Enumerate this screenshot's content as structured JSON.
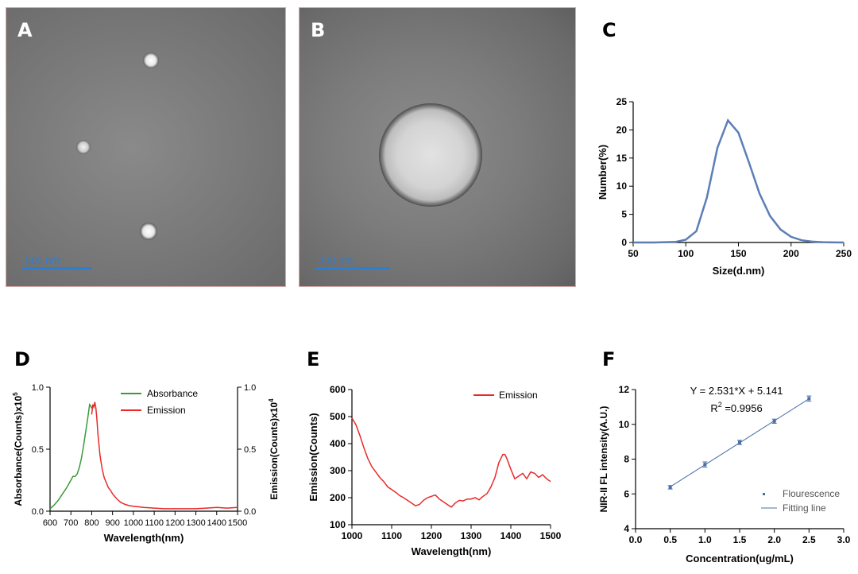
{
  "panels": {
    "A": {
      "letter": "A",
      "scale_bar": "500  nm"
    },
    "B": {
      "letter": "B",
      "scale_bar": "200  nm"
    },
    "C": {
      "letter": "C"
    },
    "D": {
      "letter": "D"
    },
    "E": {
      "letter": "E"
    },
    "F": {
      "letter": "F"
    }
  },
  "chart_data": [
    {
      "id": "C",
      "type": "line",
      "xlabel": "Size(d.nm)",
      "ylabel": "Number(%)",
      "xlim": [
        50,
        250
      ],
      "ylim": [
        0,
        25
      ],
      "xticks": [
        50,
        100,
        150,
        200,
        250
      ],
      "yticks": [
        0,
        5,
        10,
        15,
        20,
        25
      ],
      "color": "#5b7fb5",
      "series": [
        {
          "x": [
            50,
            70,
            90,
            100,
            110,
            120,
            130,
            140,
            150,
            160,
            170,
            180,
            190,
            200,
            210,
            220,
            230,
            240,
            250
          ],
          "y": [
            0,
            0,
            0.1,
            0.5,
            2,
            8,
            16.8,
            21.7,
            19.5,
            14.2,
            8.7,
            4.7,
            2.3,
            1.0,
            0.4,
            0.15,
            0.05,
            0.02,
            0
          ]
        }
      ]
    },
    {
      "id": "D",
      "type": "line",
      "xlabel": "Wavelength(nm)",
      "ylabel_left": "Absorbance(Counts)x10",
      "ylabel_left_sup": "5",
      "ylabel_right": "Emission(Counts)x10",
      "ylabel_right_sup": "4",
      "xlim": [
        600,
        1500
      ],
      "ylim": [
        0,
        1.0
      ],
      "xticks": [
        600,
        700,
        800,
        900,
        1000,
        1100,
        1200,
        1300,
        1400,
        1500
      ],
      "yticks": [
        0,
        0.5,
        1.0
      ],
      "ytick_labels": [
        "0.0",
        "0.5",
        "1.0"
      ],
      "series": [
        {
          "name": "Absorbance",
          "color": "#3a9a3a",
          "x": [
            600,
            620,
            640,
            660,
            680,
            700,
            710,
            720,
            730,
            740,
            750,
            760,
            770,
            780,
            790,
            795,
            800
          ],
          "y": [
            0.02,
            0.05,
            0.09,
            0.14,
            0.19,
            0.25,
            0.28,
            0.28,
            0.3,
            0.35,
            0.42,
            0.52,
            0.63,
            0.74,
            0.86,
            0.85,
            0.83
          ]
        },
        {
          "name": "Emission",
          "color": "#e82a2a",
          "x": [
            800,
            805,
            810,
            815,
            820,
            825,
            830,
            840,
            850,
            860,
            870,
            880,
            890,
            900,
            920,
            940,
            960,
            980,
            1000,
            1050,
            1100,
            1150,
            1200,
            1250,
            1300,
            1350,
            1400,
            1450,
            1500
          ],
          "y": [
            0.78,
            0.86,
            0.84,
            0.88,
            0.83,
            0.74,
            0.62,
            0.45,
            0.34,
            0.27,
            0.23,
            0.19,
            0.17,
            0.14,
            0.1,
            0.07,
            0.055,
            0.045,
            0.04,
            0.03,
            0.025,
            0.02,
            0.02,
            0.02,
            0.02,
            0.025,
            0.03,
            0.025,
            0.03
          ]
        }
      ],
      "legend": "top-right"
    },
    {
      "id": "E",
      "type": "line",
      "xlabel": "Wavelength(nm)",
      "ylabel": "Emission(Counts)",
      "xlim": [
        1000,
        1500
      ],
      "ylim": [
        100,
        600
      ],
      "xticks": [
        1000,
        1100,
        1200,
        1300,
        1400,
        1500
      ],
      "yticks": [
        100,
        200,
        300,
        400,
        500,
        600
      ],
      "series": [
        {
          "name": "Emission",
          "color": "#e82a2a",
          "x": [
            1000,
            1010,
            1020,
            1030,
            1040,
            1050,
            1060,
            1070,
            1080,
            1090,
            1100,
            1110,
            1120,
            1130,
            1140,
            1150,
            1160,
            1170,
            1180,
            1190,
            1200,
            1210,
            1220,
            1230,
            1240,
            1250,
            1260,
            1270,
            1280,
            1290,
            1300,
            1310,
            1320,
            1330,
            1340,
            1350,
            1360,
            1370,
            1380,
            1385,
            1390,
            1400,
            1410,
            1420,
            1430,
            1440,
            1450,
            1460,
            1470,
            1480,
            1490,
            1500
          ],
          "y": [
            495,
            470,
            430,
            385,
            345,
            315,
            295,
            275,
            260,
            240,
            230,
            220,
            208,
            200,
            190,
            180,
            170,
            175,
            190,
            200,
            205,
            210,
            195,
            185,
            175,
            165,
            180,
            190,
            188,
            195,
            195,
            200,
            192,
            205,
            215,
            240,
            275,
            330,
            360,
            360,
            345,
            305,
            270,
            280,
            290,
            270,
            295,
            290,
            275,
            285,
            270,
            260
          ]
        }
      ],
      "legend": "top-right"
    },
    {
      "id": "F",
      "type": "scatter",
      "xlabel": "Concentration(ug/mL)",
      "ylabel": "NIR-II FL intensity(A.U.)",
      "xlim": [
        0,
        3.0
      ],
      "ylim": [
        4,
        12
      ],
      "xticks": [
        0,
        0.5,
        1.0,
        1.5,
        2.0,
        2.5,
        3.0
      ],
      "xtick_labels": [
        "0.0",
        "0.5",
        "1.0",
        "1.5",
        "2.0",
        "2.5",
        "3.0"
      ],
      "yticks": [
        4,
        6,
        8,
        10,
        12
      ],
      "annotation_eq": "Y = 2.531*X + 5.141",
      "annotation_r2_base": "R",
      "annotation_r2_sup": "2",
      "annotation_r2_value": " =0.9956",
      "color": "#4a6fa8",
      "series": [
        {
          "name": "Flourescence",
          "x": [
            0.5,
            1.0,
            1.5,
            2.0,
            2.5
          ],
          "y": [
            6.38,
            7.69,
            8.96,
            10.18,
            11.48
          ],
          "err": [
            0.1,
            0.15,
            0.12,
            0.12,
            0.15
          ]
        },
        {
          "name": "Fitting line",
          "slope": 2.531,
          "intercept": 5.141,
          "x_range": [
            0.5,
            2.5
          ]
        }
      ],
      "legend": "bottom-right"
    }
  ]
}
